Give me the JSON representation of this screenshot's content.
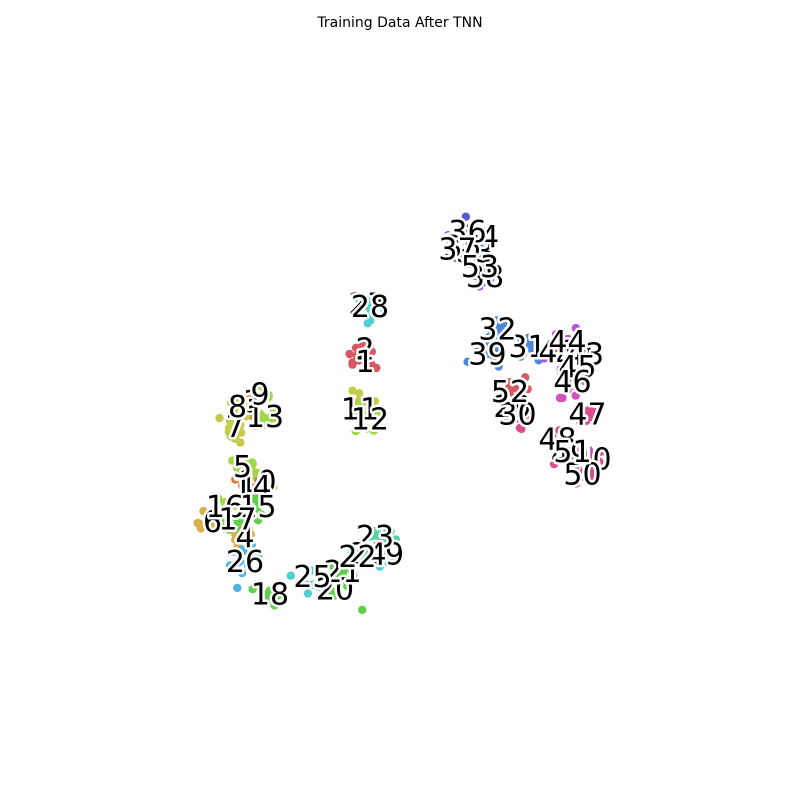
{
  "chart_data": {
    "type": "scatter",
    "title": "Training Data After TNN",
    "xlabel": "",
    "ylabel": "",
    "axes_visible": false,
    "grid": false,
    "legend": "none",
    "xlim": [
      -60,
      60
    ],
    "ylim": [
      -60,
      60
    ],
    "colors": {
      "red": "#d9585f",
      "orange": "#d9803f",
      "gold": "#d8b04c",
      "yellow": "#c5cc4a",
      "lime": "#9fd94a",
      "green": "#5fd04a",
      "mint": "#4cd6a0",
      "cyan": "#4dcfd4",
      "sky": "#4fb2e0",
      "blue": "#4f86da",
      "indigo": "#5b5bd8",
      "violet": "#8b4fd8",
      "purple": "#c04fd8",
      "magenta": "#d64fbf",
      "pink": "#d9508e"
    },
    "clusters": [
      {
        "label": "2",
        "color": "red",
        "x": -7.0,
        "y": 10.0,
        "spread": 1.5
      },
      {
        "label": "3",
        "color": "orange",
        "x": -29.5,
        "y": -0.5,
        "spread": 1.0
      },
      {
        "label": "4",
        "color": "gold",
        "x": -31.0,
        "y": -27.5,
        "spread": 1.2
      },
      {
        "label": "6",
        "color": "gold",
        "x": -37.5,
        "y": -24.5,
        "spread": 1.5
      },
      {
        "label": "7",
        "color": "yellow",
        "x": -33.0,
        "y": -5.5,
        "spread": 1.5
      },
      {
        "label": "8",
        "color": "yellow",
        "x": -32.5,
        "y": -1.5,
        "spread": 1.2
      },
      {
        "label": "10",
        "color": "lime",
        "x": -28.5,
        "y": -16.5,
        "spread": 1.5
      },
      {
        "label": "11",
        "color": "yellow",
        "x": -8.0,
        "y": -2.0,
        "spread": 2.0
      },
      {
        "label": "12",
        "color": "lime",
        "x": -6.0,
        "y": -4.0,
        "spread": 1.5
      },
      {
        "label": "13",
        "color": "lime",
        "x": -27.0,
        "y": -3.5,
        "spread": 1.2
      },
      {
        "label": "14",
        "color": "orange",
        "x": -29.5,
        "y": -17.5,
        "spread": 1.5
      },
      {
        "label": "15",
        "color": "green",
        "x": -28.5,
        "y": -21.5,
        "spread": 1.5
      },
      {
        "label": "16",
        "color": "lime",
        "x": -35.0,
        "y": -21.5,
        "spread": 1.8
      },
      {
        "label": "17",
        "color": "green",
        "x": -32.5,
        "y": -24.0,
        "spread": 1.5
      },
      {
        "label": "18",
        "color": "green",
        "x": -26.0,
        "y": -39.0,
        "spread": 1.0
      },
      {
        "label": "19",
        "color": "cyan",
        "x": -3.0,
        "y": -31.0,
        "spread": 1.0
      },
      {
        "label": "20",
        "color": "green",
        "x": -13.0,
        "y": -38.0,
        "spread": 2.0
      },
      {
        "label": "21",
        "color": "green",
        "x": -11.5,
        "y": -34.5,
        "spread": 1.2
      },
      {
        "label": "23",
        "color": "mint",
        "x": -5.0,
        "y": -27.5,
        "spread": 1.5
      },
      {
        "label": "24",
        "color": "mint",
        "x": -6.5,
        "y": -31.0,
        "spread": 1.5
      },
      {
        "label": "25",
        "color": "cyan",
        "x": -17.5,
        "y": -35.5,
        "spread": 1.5
      },
      {
        "label": "26",
        "color": "sky",
        "x": -31.0,
        "y": -32.5,
        "spread": 1.5
      },
      {
        "label": "27",
        "color": "cyan",
        "x": -6.5,
        "y": 19.0,
        "spread": 1.5
      },
      {
        "label": "28",
        "color": "cyan",
        "x": -6.0,
        "y": 18.5,
        "spread": 1.2
      },
      {
        "label": "29",
        "color": "pink",
        "x": 22.5,
        "y": -1.5,
        "spread": 1.2
      },
      {
        "label": "30",
        "color": "pink",
        "x": 23.5,
        "y": -3.0,
        "spread": 1.5
      },
      {
        "label": "31",
        "color": "blue",
        "x": 25.5,
        "y": 10.5,
        "spread": 1.0
      },
      {
        "label": "32",
        "color": "blue",
        "x": 19.5,
        "y": 14.0,
        "spread": 1.2
      },
      {
        "label": "33",
        "color": "blue",
        "x": 15.0,
        "y": 29.5,
        "spread": 1.0
      },
      {
        "label": "34",
        "color": "blue",
        "x": 16.0,
        "y": 32.5,
        "spread": 1.0
      },
      {
        "label": "35",
        "color": "indigo",
        "x": 12.5,
        "y": 30.5,
        "spread": 1.0
      },
      {
        "label": "36",
        "color": "indigo",
        "x": 13.5,
        "y": 33.5,
        "spread": 1.5
      },
      {
        "label": "37",
        "color": "indigo",
        "x": 11.5,
        "y": 30.0,
        "spread": 2.0
      },
      {
        "label": "38",
        "color": "violet",
        "x": 17.0,
        "y": 24.5,
        "spread": 1.2
      },
      {
        "label": "39",
        "color": "blue",
        "x": 17.5,
        "y": 9.0,
        "spread": 1.5
      },
      {
        "label": "40",
        "color": "pink",
        "x": 38.5,
        "y": -12.0,
        "spread": 1.2
      },
      {
        "label": "41",
        "color": "purple",
        "x": 31.5,
        "y": 9.5,
        "spread": 1.2
      },
      {
        "label": "42",
        "color": "magenta",
        "x": 35.0,
        "y": 8.5,
        "spread": 1.2
      },
      {
        "label": "43",
        "color": "magenta",
        "x": 37.0,
        "y": 9.0,
        "spread": 1.2
      },
      {
        "label": "44",
        "color": "purple",
        "x": 33.5,
        "y": 11.5,
        "spread": 1.5
      },
      {
        "label": "45",
        "color": "magenta",
        "x": 35.5,
        "y": 6.5,
        "spread": 1.5
      },
      {
        "label": "46",
        "color": "magenta",
        "x": 34.5,
        "y": 3.5,
        "spread": 1.5
      },
      {
        "label": "47",
        "color": "pink",
        "x": 37.5,
        "y": -3.0,
        "spread": 1.0
      },
      {
        "label": "48",
        "color": "pink",
        "x": 31.5,
        "y": -8.0,
        "spread": 1.2
      },
      {
        "label": "49",
        "color": "purple",
        "x": 34.0,
        "y": -11.0,
        "spread": 1.2
      },
      {
        "label": "50",
        "color": "pink",
        "x": 36.5,
        "y": -15.0,
        "spread": 1.5
      },
      {
        "label": "51",
        "color": "pink",
        "x": 34.5,
        "y": -10.5,
        "spread": 1.2
      },
      {
        "label": "52",
        "color": "red",
        "x": 22.0,
        "y": 1.5,
        "spread": 1.5
      },
      {
        "label": "53",
        "color": "violet",
        "x": 16.0,
        "y": 26.5,
        "spread": 1.5
      },
      {
        "label": "1",
        "color": "red",
        "x": -7.0,
        "y": 7.5,
        "spread": 1.2
      },
      {
        "label": "5",
        "color": "lime",
        "x": -31.5,
        "y": -13.5,
        "spread": 1.2
      },
      {
        "label": "9",
        "color": "lime",
        "x": -28.0,
        "y": 1.0,
        "spread": 1.0
      },
      {
        "label": "22",
        "color": "mint",
        "x": -8.5,
        "y": -31.5,
        "spread": 1.2
      }
    ]
  }
}
